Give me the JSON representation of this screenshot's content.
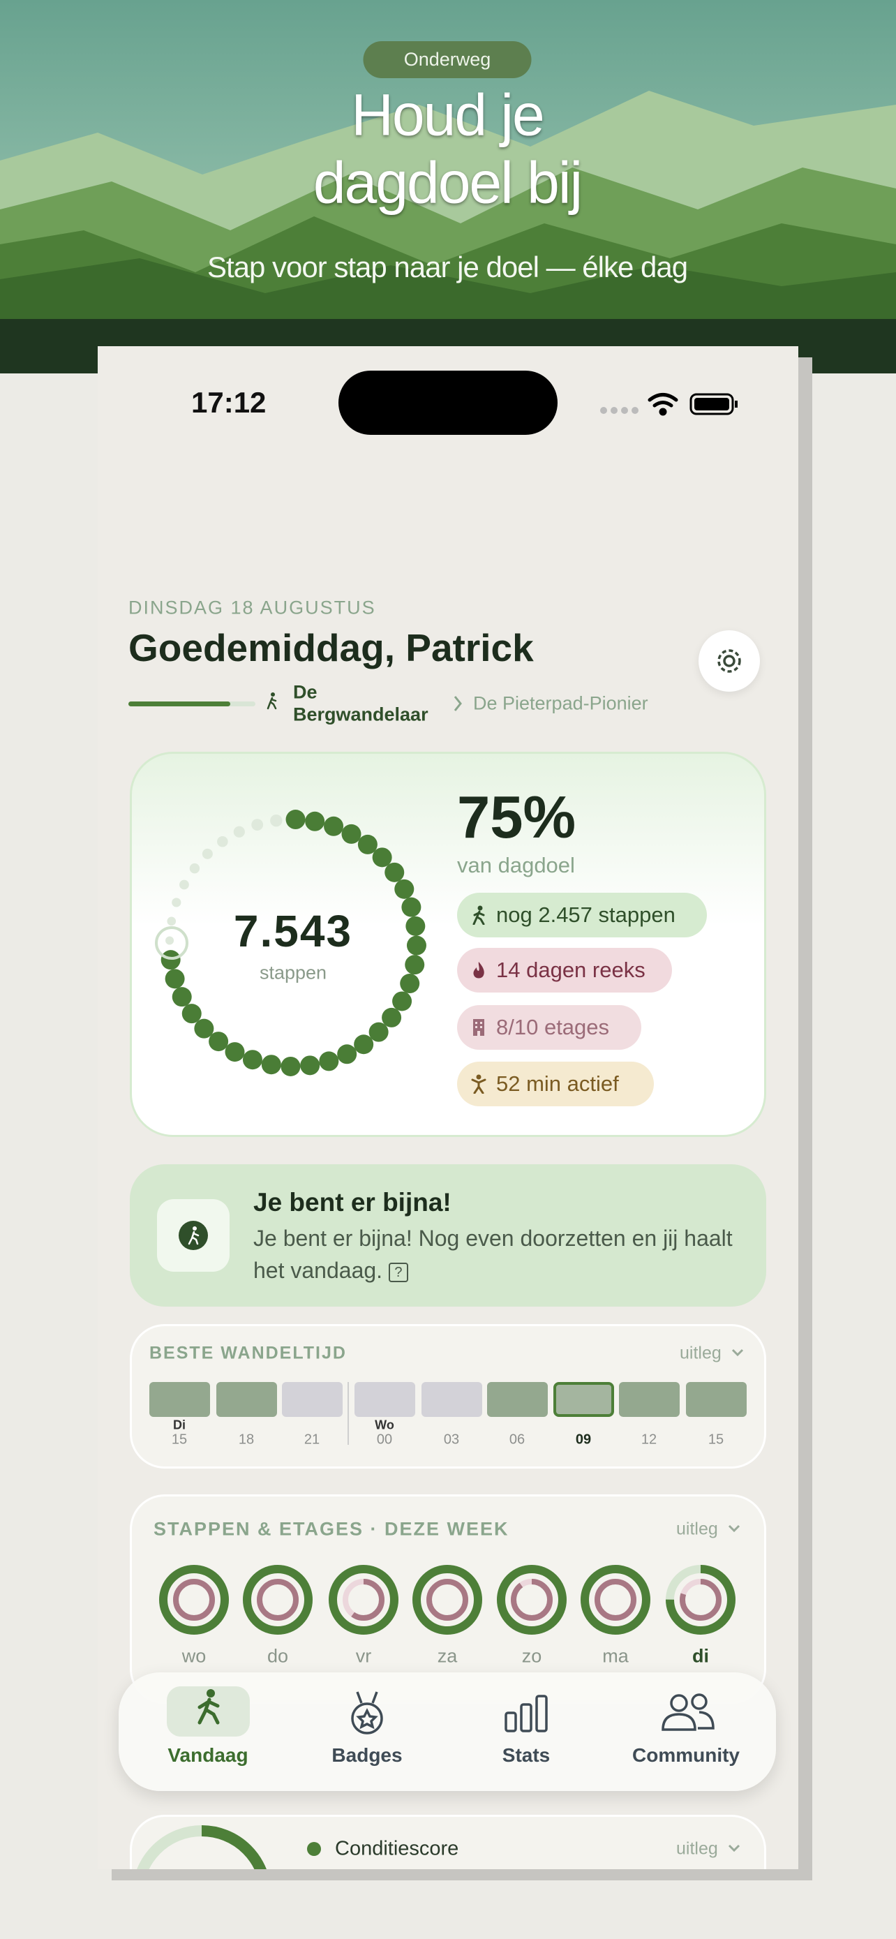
{
  "hero": {
    "badge": "Onderweg",
    "title_lines": [
      "Houd je",
      "dagdoel bij"
    ],
    "subtitle": "Stap voor stap naar je doel — élke dag"
  },
  "status_bar": {
    "time": "17:12"
  },
  "header": {
    "date": "DINSDAG 18 AUGUSTUS",
    "greeting": "Goedemiddag, Patrick",
    "current_level": [
      "De",
      "Bergwandelaar"
    ],
    "next_level": "De Pieterpad-Pionier"
  },
  "progress_card": {
    "steps": "7.543",
    "steps_label": "stappen",
    "percent": "75%",
    "percent_label": "van dagdoel",
    "chips": [
      "nog 2.457 stappen",
      "14 dagen reeks",
      "8/10 etages",
      "52 min actief"
    ]
  },
  "tip_card": {
    "title": "Je bent er bijna!",
    "body": "Je bent er bijna! Nog even doorzetten en jij haalt het vandaag.",
    "help": "?"
  },
  "best_time_card": {
    "title": "BESTE WANDELTIJD",
    "more": "uitleg",
    "day_labels": [
      "Di",
      "Wo"
    ],
    "hours": [
      "15",
      "18",
      "21",
      "00",
      "03",
      "06",
      "09",
      "12",
      "15"
    ]
  },
  "week_card": {
    "title": "STAPPEN & ETAGES · DEZE WEEK",
    "more": "uitleg",
    "days": [
      "wo",
      "do",
      "vr",
      "za",
      "zo",
      "ma",
      "di"
    ]
  },
  "tab_bar": {
    "tabs": [
      "Vandaag",
      "Badges",
      "Stats",
      "Community"
    ]
  },
  "condition_card": {
    "title": "Conditiescore",
    "more": "uitleg"
  }
}
